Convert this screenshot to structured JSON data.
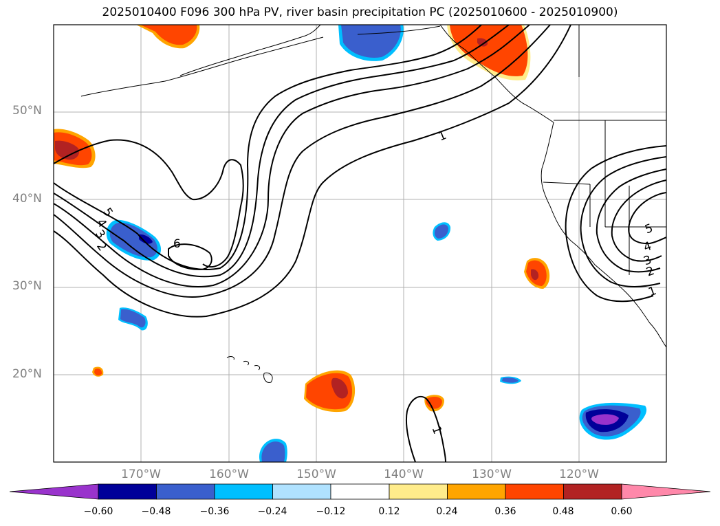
{
  "title": "2025010400 F096 300 hPa PV, river basin precipitation PC (2025010600 - 2025010900)",
  "lat_labels": [
    "50°N",
    "40°N",
    "30°N",
    "20°N"
  ],
  "lon_labels": [
    "170°W",
    "160°W",
    "150°W",
    "140°W",
    "130°W",
    "120°W"
  ],
  "contour_labels": [
    "1",
    "2",
    "3",
    "4",
    "5",
    "6",
    "1",
    "2",
    "3",
    "4",
    "5",
    "1"
  ],
  "colorbar": {
    "ticks": [
      "−0.60",
      "−0.48",
      "−0.36",
      "−0.24",
      "−0.12",
      "0.12",
      "0.24",
      "0.36",
      "0.48",
      "0.60"
    ],
    "colors": [
      "#9933cc",
      "#000099",
      "#3a5fcd",
      "#00bfff",
      "#b0e2ff",
      "#ffffff",
      "#ffec8b",
      "#ffa500",
      "#ff4500",
      "#b22222",
      "#ff88aa"
    ]
  },
  "colors": {
    "strong_negative": "#000099",
    "negative": "#3a5fcd",
    "weak_negative": "#00bfff",
    "positive": "#ff4500",
    "strong_positive": "#b22222",
    "weak_positive": "#ffa500",
    "faint_positive": "#ffec8b",
    "grid": "#b0b0b0"
  }
}
